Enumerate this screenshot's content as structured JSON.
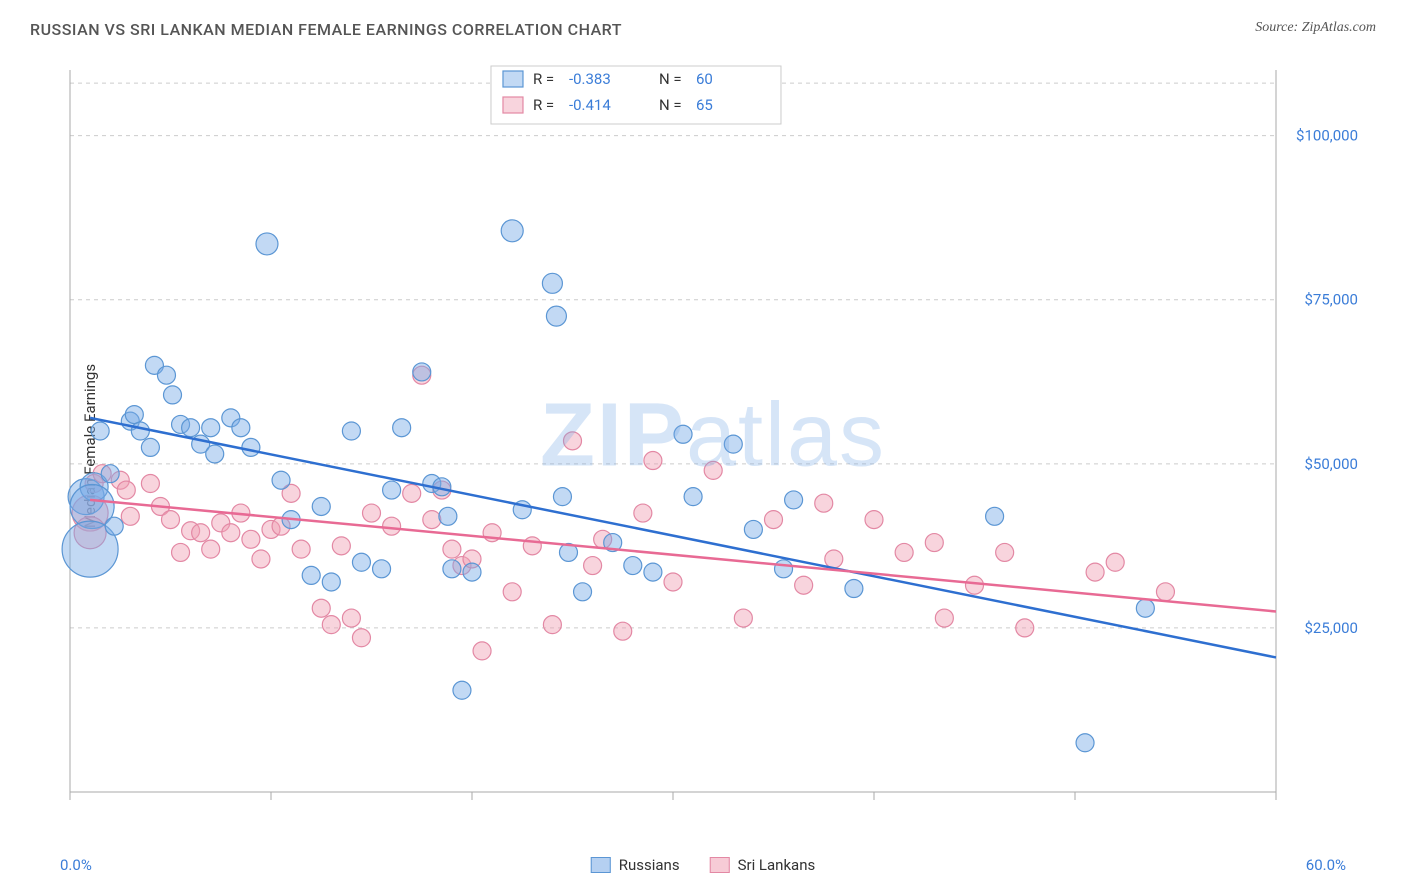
{
  "title": "RUSSIAN VS SRI LANKAN MEDIAN FEMALE EARNINGS CORRELATION CHART",
  "source": "Source: ZipAtlas.com",
  "ylabel": "Median Female Earnings",
  "watermark_bold": "ZIP",
  "watermark_light": "atlas",
  "chart": {
    "type": "scatter",
    "xlim": [
      0,
      60
    ],
    "ylim": [
      0,
      110000
    ],
    "yticks": [
      25000,
      50000,
      75000,
      100000
    ],
    "ytick_labels": [
      "$25,000",
      "$50,000",
      "$75,000",
      "$100,000"
    ],
    "xtick_start_label": "0.0%",
    "xtick_end_label": "60.0%",
    "xtick_positions": [
      0,
      10,
      20,
      30,
      40,
      50,
      60
    ],
    "grid_color": "#cccccc",
    "background_color": "#ffffff",
    "marker_default_r": 9,
    "series": [
      {
        "name": "Russians",
        "color_fill": "rgba(120,170,230,0.45)",
        "color_stroke": "#5b96d4",
        "trend_color": "#2e6fd0",
        "R": "-0.383",
        "N": "60",
        "trend": {
          "x1": 1,
          "y1": 57000,
          "x2": 60,
          "y2": 20500
        },
        "points": [
          {
            "x": 0.8,
            "y": 45000,
            "r": 18
          },
          {
            "x": 1.2,
            "y": 46500,
            "r": 14
          },
          {
            "x": 1.1,
            "y": 43500,
            "r": 22
          },
          {
            "x": 1.0,
            "y": 37000,
            "r": 28
          },
          {
            "x": 1.5,
            "y": 55000
          },
          {
            "x": 2.0,
            "y": 48500
          },
          {
            "x": 2.2,
            "y": 40500
          },
          {
            "x": 3.0,
            "y": 56500
          },
          {
            "x": 3.2,
            "y": 57500
          },
          {
            "x": 3.5,
            "y": 55000
          },
          {
            "x": 4.0,
            "y": 52500
          },
          {
            "x": 4.2,
            "y": 65000
          },
          {
            "x": 4.8,
            "y": 63500
          },
          {
            "x": 5.1,
            "y": 60500
          },
          {
            "x": 5.5,
            "y": 56000
          },
          {
            "x": 6.0,
            "y": 55500
          },
          {
            "x": 6.5,
            "y": 53000
          },
          {
            "x": 7.0,
            "y": 55500
          },
          {
            "x": 7.2,
            "y": 51500
          },
          {
            "x": 8.0,
            "y": 57000
          },
          {
            "x": 8.5,
            "y": 55500
          },
          {
            "x": 9.0,
            "y": 52500
          },
          {
            "x": 9.8,
            "y": 83500,
            "r": 11
          },
          {
            "x": 10.5,
            "y": 47500
          },
          {
            "x": 11.0,
            "y": 41500
          },
          {
            "x": 12.0,
            "y": 33000
          },
          {
            "x": 12.5,
            "y": 43500
          },
          {
            "x": 13.0,
            "y": 32000
          },
          {
            "x": 14.0,
            "y": 55000
          },
          {
            "x": 14.5,
            "y": 35000
          },
          {
            "x": 15.5,
            "y": 34000
          },
          {
            "x": 16.0,
            "y": 46000
          },
          {
            "x": 16.5,
            "y": 55500
          },
          {
            "x": 17.5,
            "y": 64000
          },
          {
            "x": 18.0,
            "y": 47000
          },
          {
            "x": 18.5,
            "y": 46500
          },
          {
            "x": 18.8,
            "y": 42000
          },
          {
            "x": 19.0,
            "y": 34000
          },
          {
            "x": 19.5,
            "y": 15500
          },
          {
            "x": 20.0,
            "y": 33500
          },
          {
            "x": 22.0,
            "y": 85500,
            "r": 11
          },
          {
            "x": 22.5,
            "y": 43000
          },
          {
            "x": 24.0,
            "y": 77500,
            "r": 10
          },
          {
            "x": 24.2,
            "y": 72500,
            "r": 10
          },
          {
            "x": 24.5,
            "y": 45000
          },
          {
            "x": 24.8,
            "y": 36500
          },
          {
            "x": 25.5,
            "y": 30500
          },
          {
            "x": 27.0,
            "y": 38000
          },
          {
            "x": 28.0,
            "y": 34500
          },
          {
            "x": 29.0,
            "y": 33500
          },
          {
            "x": 30.5,
            "y": 54500
          },
          {
            "x": 31.0,
            "y": 45000
          },
          {
            "x": 33.0,
            "y": 53000
          },
          {
            "x": 34.0,
            "y": 40000
          },
          {
            "x": 35.5,
            "y": 34000
          },
          {
            "x": 36.0,
            "y": 44500
          },
          {
            "x": 39.0,
            "y": 31000
          },
          {
            "x": 46.0,
            "y": 42000
          },
          {
            "x": 50.5,
            "y": 7500
          },
          {
            "x": 53.5,
            "y": 28000
          }
        ]
      },
      {
        "name": "Sri Lankans",
        "color_fill": "rgba(240,160,180,0.45)",
        "color_stroke": "#e388a4",
        "trend_color": "#e86a94",
        "R": "-0.414",
        "N": "65",
        "trend": {
          "x1": 1,
          "y1": 44500,
          "x2": 60,
          "y2": 27500
        },
        "points": [
          {
            "x": 1.0,
            "y": 42500,
            "r": 18
          },
          {
            "x": 1.0,
            "y": 39500,
            "r": 16
          },
          {
            "x": 1.2,
            "y": 47000
          },
          {
            "x": 1.6,
            "y": 48500
          },
          {
            "x": 2.5,
            "y": 47500
          },
          {
            "x": 2.8,
            "y": 46000
          },
          {
            "x": 3.0,
            "y": 42000
          },
          {
            "x": 4.0,
            "y": 47000
          },
          {
            "x": 4.5,
            "y": 43500
          },
          {
            "x": 5.0,
            "y": 41500
          },
          {
            "x": 5.5,
            "y": 36500
          },
          {
            "x": 6.0,
            "y": 39800
          },
          {
            "x": 6.5,
            "y": 39500
          },
          {
            "x": 7.0,
            "y": 37000
          },
          {
            "x": 7.5,
            "y": 41000
          },
          {
            "x": 8.0,
            "y": 39500
          },
          {
            "x": 8.5,
            "y": 42500
          },
          {
            "x": 9.0,
            "y": 38500
          },
          {
            "x": 9.5,
            "y": 35500
          },
          {
            "x": 10.0,
            "y": 40000
          },
          {
            "x": 10.5,
            "y": 40500
          },
          {
            "x": 11.0,
            "y": 45500
          },
          {
            "x": 11.5,
            "y": 37000
          },
          {
            "x": 12.5,
            "y": 28000
          },
          {
            "x": 13.0,
            "y": 25500
          },
          {
            "x": 13.5,
            "y": 37500
          },
          {
            "x": 14.0,
            "y": 26500
          },
          {
            "x": 14.5,
            "y": 23500
          },
          {
            "x": 15.0,
            "y": 42500
          },
          {
            "x": 16.0,
            "y": 40500
          },
          {
            "x": 17.0,
            "y": 45500
          },
          {
            "x": 17.5,
            "y": 63500
          },
          {
            "x": 18.0,
            "y": 41500
          },
          {
            "x": 18.5,
            "y": 46000
          },
          {
            "x": 19.0,
            "y": 37000
          },
          {
            "x": 19.5,
            "y": 34500
          },
          {
            "x": 20.0,
            "y": 35500
          },
          {
            "x": 20.5,
            "y": 21500
          },
          {
            "x": 21.0,
            "y": 39500
          },
          {
            "x": 22.0,
            "y": 30500
          },
          {
            "x": 23.0,
            "y": 37500
          },
          {
            "x": 24.0,
            "y": 25500
          },
          {
            "x": 25.0,
            "y": 53500
          },
          {
            "x": 26.0,
            "y": 34500
          },
          {
            "x": 26.5,
            "y": 38500
          },
          {
            "x": 27.5,
            "y": 24500
          },
          {
            "x": 28.5,
            "y": 42500
          },
          {
            "x": 29.0,
            "y": 50500
          },
          {
            "x": 30.0,
            "y": 32000
          },
          {
            "x": 32.0,
            "y": 49000
          },
          {
            "x": 33.5,
            "y": 26500
          },
          {
            "x": 35.0,
            "y": 41500
          },
          {
            "x": 36.5,
            "y": 31500
          },
          {
            "x": 37.5,
            "y": 44000
          },
          {
            "x": 38.0,
            "y": 35500
          },
          {
            "x": 40.0,
            "y": 41500
          },
          {
            "x": 41.5,
            "y": 36500
          },
          {
            "x": 43.0,
            "y": 38000
          },
          {
            "x": 43.5,
            "y": 26500
          },
          {
            "x": 45.0,
            "y": 31500
          },
          {
            "x": 46.5,
            "y": 36500
          },
          {
            "x": 47.5,
            "y": 25000
          },
          {
            "x": 51.0,
            "y": 33500
          },
          {
            "x": 52.0,
            "y": 35000
          },
          {
            "x": 54.5,
            "y": 30500
          }
        ]
      }
    ],
    "legend_bottom": [
      {
        "label": "Russians",
        "class": "blue-box"
      },
      {
        "label": "Sri Lankans",
        "class": "pink-box"
      }
    ],
    "legend_top": {
      "R_label": "R =",
      "N_label": "N ="
    }
  }
}
